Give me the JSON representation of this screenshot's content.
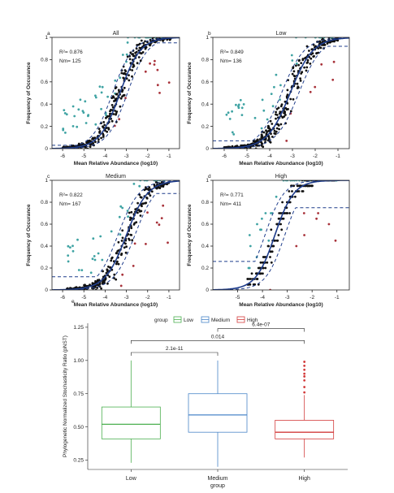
{
  "figure": {
    "x_axis_title": "Mean Relative Abundance (log10)",
    "y_axis_title": "Frequency of Occurance"
  },
  "colors": {
    "above": "#3fa3a3",
    "below": "#a8323a",
    "neutral": "#111111",
    "fit": "#1f3d8c",
    "group_low": "#4caf50",
    "group_medium": "#4a86c8",
    "group_high": "#d33c3c"
  },
  "chart_data": [
    {
      "type": "scatter",
      "panel": "a",
      "title": "All",
      "stats": {
        "r2": "R²= 0.876",
        "nm": "Nm= 125"
      },
      "xlim": [
        -6.5,
        -0.5
      ],
      "ylim": [
        0,
        1
      ],
      "xticks": [
        "-6",
        "-5",
        "-4",
        "-3",
        "-2",
        "-1"
      ],
      "yticks": [
        "0",
        "0.2",
        "0.4",
        "0.6",
        "0.8",
        "1"
      ],
      "model": {
        "center": -3.3,
        "slope": 2.1,
        "band": 0.35,
        "ci_low_floor": 0.0,
        "ci_high_floor": 0.03,
        "ci_low_cap": 0.95
      },
      "sample": {
        "n": 420,
        "xmin": -6.0,
        "xmax": -0.9,
        "skew": 1.25,
        "spread": 0.22,
        "p_above": 0.1,
        "p_below": 0.06
      }
    },
    {
      "type": "scatter",
      "panel": "b",
      "title": "Low",
      "stats": {
        "r2": "R²= 0.849",
        "nm": "Nm= 136"
      },
      "xlim": [
        -6.5,
        -0.5
      ],
      "ylim": [
        0,
        1
      ],
      "xticks": [
        "-6",
        "-5",
        "-4",
        "-3",
        "-2",
        "-1"
      ],
      "yticks": [
        "0",
        "0.2",
        "0.4",
        "0.6",
        "0.8",
        "1"
      ],
      "model": {
        "center": -3.1,
        "slope": 2.0,
        "band": 0.38,
        "ci_low_floor": 0.0,
        "ci_high_floor": 0.07,
        "ci_low_cap": 0.92
      },
      "sample": {
        "n": 420,
        "xmin": -6.0,
        "xmax": -1.0,
        "skew": 1.25,
        "spread": 0.22,
        "p_above": 0.1,
        "p_below": 0.06
      }
    },
    {
      "type": "scatter",
      "panel": "c",
      "title": "Medium",
      "stats": {
        "r2": "R²= 0.822",
        "nm": "Nm= 167"
      },
      "xlim": [
        -6.5,
        -0.5
      ],
      "ylim": [
        0,
        1
      ],
      "xticks": [
        "-6",
        "-5",
        "-4",
        "-3",
        "-2",
        "-1"
      ],
      "yticks": [
        "0",
        "0.2",
        "0.4",
        "0.6",
        "0.8",
        "1"
      ],
      "model": {
        "center": -3.0,
        "slope": 2.0,
        "band": 0.4,
        "ci_low_floor": 0.0,
        "ci_high_floor": 0.12,
        "ci_low_cap": 0.88
      },
      "sample": {
        "n": 330,
        "xmin": -5.8,
        "xmax": -1.0,
        "skew": 1.2,
        "spread": 0.2,
        "p_above": 0.1,
        "p_below": 0.06
      }
    },
    {
      "type": "scatter",
      "panel": "d",
      "title": "High",
      "stats": {
        "r2": "R²= 0.771",
        "nm": "Nm= 411"
      },
      "xlim": [
        -6,
        -0.5
      ],
      "ylim": [
        0,
        1
      ],
      "xticks": [
        "-5",
        "-4",
        "-3",
        "-2",
        "-1"
      ],
      "yticks": [
        "0",
        "0.2",
        "0.4",
        "0.6",
        "0.8",
        "1"
      ],
      "model": {
        "center": -3.5,
        "slope": 2.6,
        "band": 0.4,
        "ci_low_floor": 0.0,
        "ci_high_floor": 0.26,
        "ci_low_cap": 0.75
      },
      "sample": {
        "n": 260,
        "xmin": -4.6,
        "xmax": -1.0,
        "skew": 1.0,
        "spread": 0.2,
        "p_above": 0.16,
        "p_below": 0.06,
        "discrete": 20
      }
    },
    {
      "type": "box",
      "panel": "e",
      "xlabel": "group",
      "ylabel": "Phylogenetic Normalized Stochasticity Ratio (pNST)",
      "legend_title": "group",
      "ylim": [
        0.18,
        1.28
      ],
      "yticks": [
        "0.25",
        "0.50",
        "0.75",
        "1.00",
        "1.25"
      ],
      "categories": [
        "Low",
        "Medium",
        "High"
      ],
      "boxes": [
        {
          "name": "Low",
          "min": 0.23,
          "q1": 0.41,
          "median": 0.52,
          "q3": 0.65,
          "max": 1.0,
          "outliers": []
        },
        {
          "name": "Medium",
          "min": 0.2,
          "q1": 0.46,
          "median": 0.59,
          "q3": 0.75,
          "max": 1.0,
          "outliers": []
        },
        {
          "name": "High",
          "min": 0.27,
          "q1": 0.41,
          "median": 0.46,
          "q3": 0.55,
          "max": 0.74,
          "outliers": [
            0.76,
            0.8,
            0.85,
            0.88,
            0.9,
            0.93,
            0.96,
            0.99
          ]
        }
      ],
      "comparisons": [
        {
          "groups": [
            "Low",
            "Medium"
          ],
          "label": "2.1e-11",
          "y": 1.06
        },
        {
          "groups": [
            "Low",
            "High"
          ],
          "label": "0.014",
          "y": 1.15
        },
        {
          "groups": [
            "Medium",
            "High"
          ],
          "label": "6.4e-07",
          "y": 1.24
        }
      ]
    }
  ]
}
